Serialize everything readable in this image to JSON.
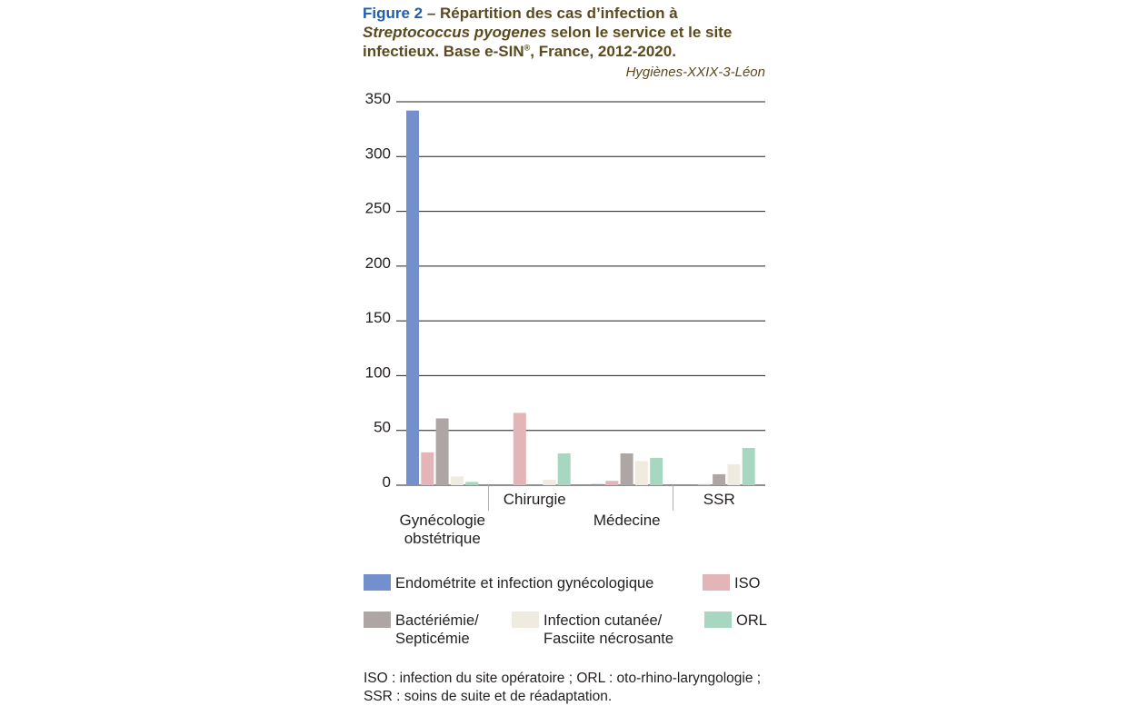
{
  "title": {
    "figure_label": "Figure 2",
    "text_before": " – Répartition des cas d’infection à ",
    "italic": "Streptococcus pyogenes",
    "text_after": " selon le service et le site infectieux. Base e-SIN",
    "superscript": "®",
    "text_end": ", France, 2012-2020."
  },
  "source": "Hygiènes-XXIX-3-Léon",
  "chart_data": {
    "type": "bar",
    "categories": [
      "Gynécologie obstétrique",
      "Chirurgie",
      "Médecine",
      "SSR"
    ],
    "category_lines": [
      [
        "Gynécologie",
        "obstétrique"
      ],
      [
        "Chirurgie"
      ],
      [
        "Médecine"
      ],
      [
        "SSR"
      ]
    ],
    "series": [
      {
        "name": "Endométrite et infection gynécologique",
        "color": "#7390cc",
        "values": [
          342,
          0,
          1,
          0
        ]
      },
      {
        "name": "ISO",
        "color": "#e3b5b8",
        "values": [
          30,
          66,
          4,
          1
        ]
      },
      {
        "name": "Bactériémie/ Septicémie",
        "color": "#ada6a4",
        "values": [
          61,
          0,
          29,
          10
        ]
      },
      {
        "name": "Infection cutanée/ Fasciite nécrosante",
        "color": "#efebdf",
        "values": [
          8,
          5,
          22,
          19
        ]
      },
      {
        "name": "ORL",
        "color": "#a8d7c1",
        "values": [
          3,
          29,
          25,
          34
        ]
      }
    ],
    "ylim": [
      0,
      350
    ],
    "yticks": [
      0,
      50,
      100,
      150,
      200,
      250,
      300,
      350
    ],
    "grid": true,
    "legend_position": "bottom",
    "xlabel": "",
    "ylabel": ""
  },
  "legend": [
    {
      "lines": [
        "Endométrite et infection gynécologique"
      ],
      "color": "#7390cc"
    },
    {
      "lines": [
        "ISO"
      ],
      "color": "#e3b5b8"
    },
    {
      "lines": [
        "Bactériémie/",
        "Septicémie"
      ],
      "color": "#ada6a4"
    },
    {
      "lines": [
        "Infection cutanée/",
        "Fasciite nécrosante"
      ],
      "color": "#efebdf"
    },
    {
      "lines": [
        "ORL"
      ],
      "color": "#a8d7c1"
    }
  ],
  "footnote": {
    "line1": "ISO : infection du site opératoire ; ORL : oto-rhino-laryngologie ;",
    "line2": "SSR : soins de suite et de réadaptation."
  }
}
